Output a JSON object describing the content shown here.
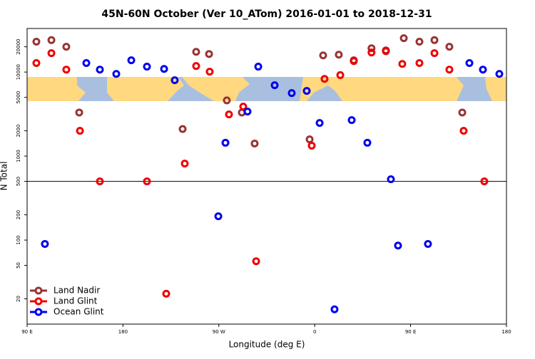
{
  "chart_data": {
    "type": "scatter",
    "title": "45N-60N October (Ver 10_ATom)   2016-01-01 to 2018-12-31",
    "xlabel": "Longitude (deg E)",
    "ylabel": "N Total",
    "log_y": true,
    "xlim": [
      90,
      540
    ],
    "ylim": [
      10,
      33000
    ],
    "xticks": [
      {
        "value": 90,
        "label": "90 E"
      },
      180,
      {
        "value": 270,
        "label": "90 W"
      },
      {
        "value": 360,
        "label": "0"
      },
      {
        "value": 450,
        "label": "90 E"
      },
      {
        "value": 540,
        "label": "180"
      }
    ],
    "yticks": [
      20,
      50,
      100,
      200,
      500,
      1000,
      2000,
      5000,
      10000,
      20000
    ],
    "reference_line": 500,
    "legend": "lower left",
    "series": [
      {
        "name": "Land Nadir",
        "color": "#993333",
        "x": [
          98.7,
          112.8,
          126.8,
          138.9,
          236.0,
          248.7,
          260.8,
          277.5,
          291.6,
          303.6,
          355.2,
          367.9,
          382.6,
          396.7,
          413.3,
          426.8,
          443.6,
          458.3,
          472.4,
          486.4,
          498.5
        ],
        "values": [
          23000,
          24000,
          20000,
          3300,
          2100,
          17400,
          16400,
          4600,
          3300,
          1410,
          1580,
          15800,
          16100,
          13800,
          19200,
          18100,
          25300,
          23000,
          24000,
          20000,
          3300
        ]
      },
      {
        "name": "Land Glint",
        "color": "#ee0000",
        "x": [
          98.7,
          112.8,
          126.8,
          139.6,
          158.3,
          202.5,
          220.6,
          238.0,
          248.7,
          261.4,
          279.5,
          292.9,
          305.0,
          357.2,
          369.2,
          384.0,
          396.7,
          413.3,
          426.8,
          442.2,
          458.3,
          472.4,
          486.4,
          499.8,
          519.2
        ],
        "values": [
          12800,
          16800,
          10700,
          2000,
          500,
          500,
          23,
          815,
          11800,
          10100,
          3130,
          3880,
          56,
          1330,
          8300,
          9200,
          13500,
          17100,
          17700,
          12500,
          12800,
          16800,
          10700,
          2000,
          500
        ]
      },
      {
        "name": "Ocean Glint",
        "color": "#0000ee",
        "x": [
          106.7,
          145.6,
          158.3,
          173.7,
          187.8,
          202.5,
          218.6,
          228.6,
          269.5,
          276.2,
          296.9,
          307.0,
          322.4,
          338.4,
          352.5,
          364.6,
          378.6,
          394.7,
          409.4,
          431.5,
          438.2,
          466.3,
          505.2,
          517.9,
          533.3
        ],
        "values": [
          90,
          12800,
          10700,
          9500,
          13800,
          11600,
          10900,
          8000,
          192,
          1440,
          3390,
          11600,
          6970,
          5620,
          5970,
          2480,
          15,
          2680,
          1440,
          530,
          86,
          90,
          12800,
          10700,
          9500
        ]
      }
    ]
  }
}
